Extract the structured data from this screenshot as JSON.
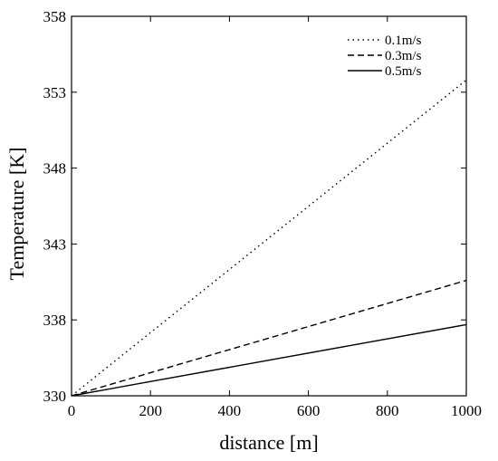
{
  "chart_data": {
    "type": "line",
    "xlabel": "distance [m]",
    "ylabel": "Temperature [K]",
    "xlim": [
      0,
      1000
    ],
    "ylim": [
      330,
      358
    ],
    "x_ticks": [
      "0",
      "200",
      "400",
      "600",
      "800",
      "1000"
    ],
    "y_ticks": [
      "330",
      "338",
      "343",
      "348",
      "353",
      "358"
    ],
    "grid": false,
    "legend_position": "top-right",
    "series": [
      {
        "name": "0.1m/s",
        "style": "dotted",
        "x": [
          0,
          1000
        ],
        "y": [
          330,
          353.8
        ]
      },
      {
        "name": "0.3m/s",
        "style": "dashed",
        "x": [
          0,
          1000
        ],
        "y": [
          330,
          340.6
        ]
      },
      {
        "name": "0.5m/s",
        "style": "solid",
        "x": [
          0,
          1000
        ],
        "y": [
          330,
          337.5
        ]
      }
    ]
  }
}
